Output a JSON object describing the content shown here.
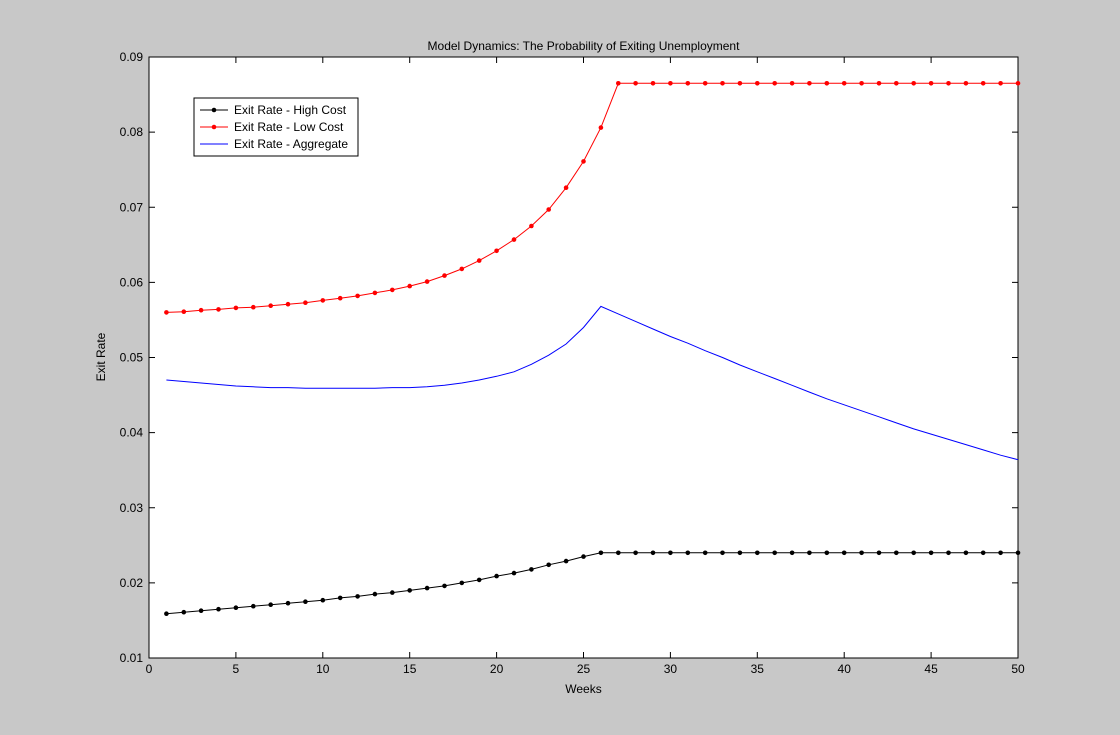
{
  "chart_data": {
    "type": "line",
    "title": "Model Dynamics: The Probability of Exiting Unemployment",
    "xlabel": "Weeks",
    "ylabel": "Exit Rate",
    "xlim": [
      0,
      50
    ],
    "ylim": [
      0.01,
      0.09
    ],
    "xticks": [
      "0",
      "5",
      "10",
      "15",
      "20",
      "25",
      "30",
      "35",
      "40",
      "45",
      "50"
    ],
    "yticks": [
      "0.01",
      "0.02",
      "0.03",
      "0.04",
      "0.05",
      "0.06",
      "0.07",
      "0.08",
      "0.09"
    ],
    "grid": false,
    "legend_position": "top-left",
    "x": [
      1,
      2,
      3,
      4,
      5,
      6,
      7,
      8,
      9,
      10,
      11,
      12,
      13,
      14,
      15,
      16,
      17,
      18,
      19,
      20,
      21,
      22,
      23,
      24,
      25,
      26,
      27,
      28,
      29,
      30,
      31,
      32,
      33,
      34,
      35,
      36,
      37,
      38,
      39,
      40,
      41,
      42,
      43,
      44,
      45,
      46,
      47,
      48,
      49,
      50
    ],
    "series": [
      {
        "name": "Exit Rate - High Cost",
        "color": "#000000",
        "marker": "dot",
        "values": [
          0.0159,
          0.0161,
          0.0163,
          0.0165,
          0.0167,
          0.0169,
          0.0171,
          0.0173,
          0.0175,
          0.0177,
          0.018,
          0.0182,
          0.0185,
          0.0187,
          0.019,
          0.0193,
          0.0196,
          0.02,
          0.0204,
          0.0209,
          0.0213,
          0.0218,
          0.0224,
          0.0229,
          0.0235,
          0.024,
          0.024,
          0.024,
          0.024,
          0.024,
          0.024,
          0.024,
          0.024,
          0.024,
          0.024,
          0.024,
          0.024,
          0.024,
          0.024,
          0.024,
          0.024,
          0.024,
          0.024,
          0.024,
          0.024,
          0.024,
          0.024,
          0.024,
          0.024,
          0.024
        ]
      },
      {
        "name": "Exit Rate - Low Cost",
        "color": "#ff0000",
        "marker": "dot",
        "values": [
          0.056,
          0.0561,
          0.0563,
          0.0564,
          0.0566,
          0.0567,
          0.0569,
          0.0571,
          0.0573,
          0.0576,
          0.0579,
          0.0582,
          0.0586,
          0.059,
          0.0595,
          0.0601,
          0.0609,
          0.0618,
          0.0629,
          0.0642,
          0.0657,
          0.0675,
          0.0697,
          0.0726,
          0.0761,
          0.0806,
          0.0865,
          0.0865,
          0.0865,
          0.0865,
          0.0865,
          0.0865,
          0.0865,
          0.0865,
          0.0865,
          0.0865,
          0.0865,
          0.0865,
          0.0865,
          0.0865,
          0.0865,
          0.0865,
          0.0865,
          0.0865,
          0.0865,
          0.0865,
          0.0865,
          0.0865,
          0.0865,
          0.0865
        ]
      },
      {
        "name": "Exit Rate - Aggregate",
        "color": "#0000ff",
        "marker": "none",
        "values": [
          0.047,
          0.0468,
          0.0466,
          0.0464,
          0.0462,
          0.0461,
          0.046,
          0.046,
          0.0459,
          0.0459,
          0.0459,
          0.0459,
          0.0459,
          0.046,
          0.046,
          0.0461,
          0.0463,
          0.0466,
          0.047,
          0.0475,
          0.0481,
          0.0491,
          0.0503,
          0.0518,
          0.054,
          0.0568,
          0.0558,
          0.0548,
          0.0538,
          0.0528,
          0.0519,
          0.0509,
          0.05,
          0.049,
          0.0481,
          0.0472,
          0.0463,
          0.0454,
          0.0445,
          0.0437,
          0.0429,
          0.0421,
          0.0413,
          0.0405,
          0.0398,
          0.0391,
          0.0384,
          0.0377,
          0.037,
          0.0364
        ]
      }
    ]
  }
}
